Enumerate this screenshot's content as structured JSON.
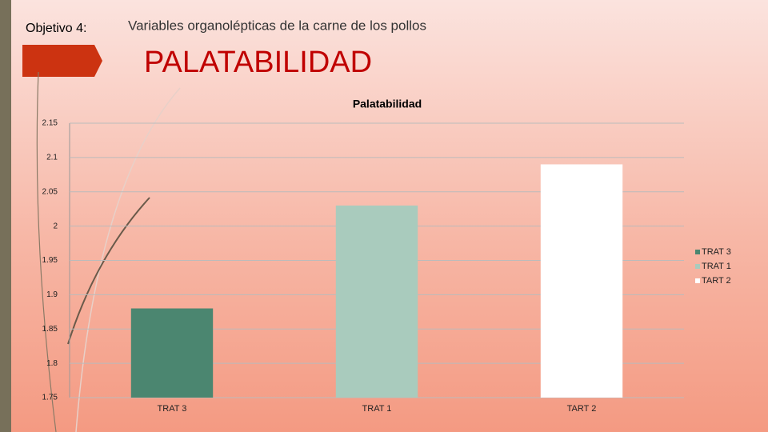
{
  "header": {
    "label": "Objetivo 4:",
    "subtitle": "Variables organolépticas de la carne de los pollos",
    "title": "PALATABILIDAD"
  },
  "chart_data": {
    "type": "bar",
    "title": "Palatabilidad",
    "categories": [
      "TRAT 3",
      "TRAT 1",
      "TART 2"
    ],
    "values": [
      1.88,
      2.03,
      2.09
    ],
    "colors": [
      "#4b8670",
      "#a9cbbd",
      "#ffffff"
    ],
    "ylim": [
      1.75,
      2.15
    ],
    "yticks": [
      1.75,
      1.8,
      1.85,
      1.9,
      1.95,
      2,
      2.05,
      2.1,
      2.15
    ],
    "grid": true,
    "legend": "right"
  }
}
